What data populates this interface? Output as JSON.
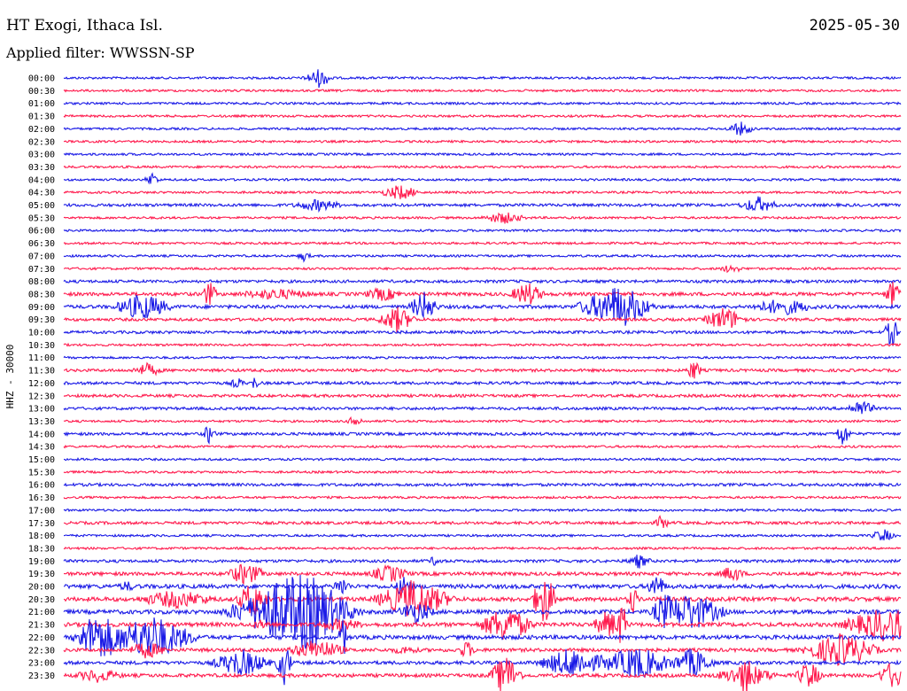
{
  "header": {
    "station": "HT Exogi, Ithaca Isl.",
    "date": "2025-05-30",
    "filter": "Applied filter: WWSSN-SP"
  },
  "chart_data": {
    "type": "line",
    "title": "HT Exogi, Ithaca Isl.",
    "ylabel": "HHZ - 30000",
    "row_labels": [
      "00:00",
      "00:30",
      "01:00",
      "01:30",
      "02:00",
      "02:30",
      "03:00",
      "03:30",
      "04:00",
      "04:30",
      "05:00",
      "05:30",
      "06:00",
      "06:30",
      "07:00",
      "07:30",
      "08:00",
      "08:30",
      "09:00",
      "09:30",
      "10:00",
      "10:30",
      "11:00",
      "11:30",
      "12:00",
      "12:30",
      "13:00",
      "13:30",
      "14:00",
      "14:30",
      "15:00",
      "15:30",
      "16:00",
      "16:30",
      "17:00",
      "17:30",
      "18:00",
      "18:30",
      "19:00",
      "19:30",
      "20:00",
      "20:30",
      "21:00",
      "21:30",
      "22:00",
      "22:30",
      "23:00",
      "23:30"
    ],
    "colors": {
      "even_rows": "#1a1ae6",
      "odd_rows": "#ff1a4d",
      "text": "#000000"
    },
    "rows_activity": [
      1,
      1,
      1,
      1,
      1,
      1,
      1,
      1,
      1,
      1,
      2,
      1,
      1,
      1,
      1,
      1,
      2,
      3,
      3,
      2,
      2,
      1,
      1,
      2,
      2,
      2,
      2,
      1,
      2,
      1,
      1,
      1,
      2,
      1,
      1,
      2,
      1,
      1,
      2,
      3,
      4,
      4,
      4,
      4,
      4,
      3,
      3,
      3
    ]
  }
}
